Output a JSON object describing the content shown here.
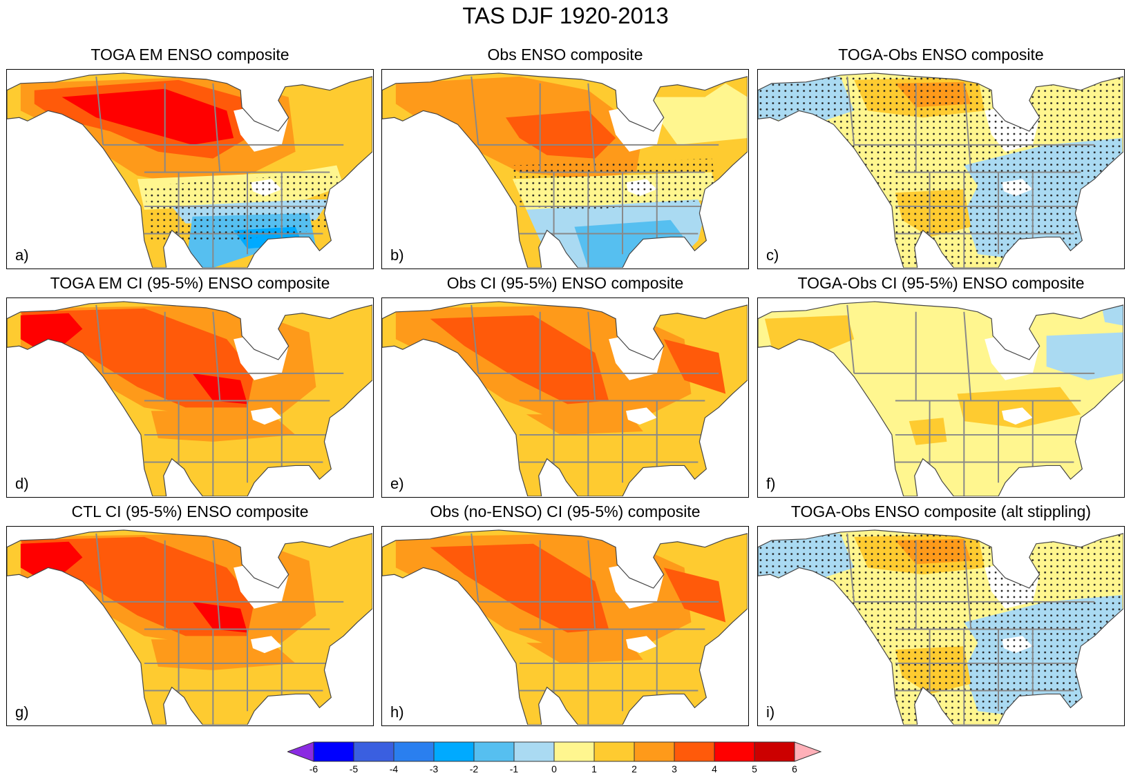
{
  "figure": {
    "title": "TAS DJF 1920-2013"
  },
  "panels": [
    {
      "title": "TOGA EM ENSO composite",
      "letter": "a)",
      "pattern": "toga_em",
      "stipple": "south"
    },
    {
      "title": "Obs ENSO composite",
      "letter": "b)",
      "pattern": "obs",
      "stipple": "band"
    },
    {
      "title": "TOGA-Obs ENSO composite",
      "letter": "c)",
      "pattern": "diff",
      "stipple": "all"
    },
    {
      "title": "TOGA EM CI (95-5%) ENSO composite",
      "letter": "d)",
      "pattern": "ci_warm",
      "stipple": "none"
    },
    {
      "title": "Obs CI (95-5%) ENSO composite",
      "letter": "e)",
      "pattern": "ci_obs",
      "stipple": "none"
    },
    {
      "title": "TOGA-Obs CI (95-5%) ENSO composite",
      "letter": "f)",
      "pattern": "ci_diff",
      "stipple": "none"
    },
    {
      "title": "CTL CI (95-5%) ENSO composite",
      "letter": "g)",
      "pattern": "ci_warm",
      "stipple": "none"
    },
    {
      "title": "Obs (no-ENSO) CI (95-5%) composite",
      "letter": "h)",
      "pattern": "ci_obs",
      "stipple": "none"
    },
    {
      "title": "TOGA-Obs ENSO composite (alt stippling)",
      "letter": "i)",
      "pattern": "diff",
      "stipple": "all"
    }
  ],
  "colorbar": {
    "labels": [
      "-6",
      "-5",
      "-4",
      "-3",
      "-2",
      "-1",
      "0",
      "1",
      "2",
      "3",
      "4",
      "5",
      "6"
    ],
    "colors": [
      "#8a2be2",
      "#0000ff",
      "#3a5fe0",
      "#2a7fef",
      "#00aaff",
      "#56bff0",
      "#aadaf2",
      "#fff68f",
      "#fecb30",
      "#fe9a1a",
      "#ff5a0a",
      "#ff0000",
      "#cc0000",
      "#ffb0b8"
    ]
  }
}
